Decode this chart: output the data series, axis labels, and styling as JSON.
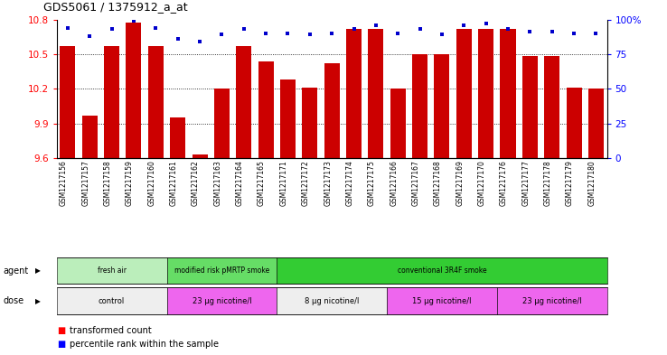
{
  "title": "GDS5061 / 1375912_a_at",
  "samples": [
    "GSM1217156",
    "GSM1217157",
    "GSM1217158",
    "GSM1217159",
    "GSM1217160",
    "GSM1217161",
    "GSM1217162",
    "GSM1217163",
    "GSM1217164",
    "GSM1217165",
    "GSM1217171",
    "GSM1217172",
    "GSM1217173",
    "GSM1217174",
    "GSM1217175",
    "GSM1217166",
    "GSM1217167",
    "GSM1217168",
    "GSM1217169",
    "GSM1217170",
    "GSM1217176",
    "GSM1217177",
    "GSM1217178",
    "GSM1217179",
    "GSM1217180"
  ],
  "bar_values": [
    10.57,
    9.97,
    10.57,
    10.77,
    10.57,
    9.95,
    9.63,
    10.2,
    10.57,
    10.44,
    10.28,
    10.21,
    10.42,
    10.72,
    10.72,
    10.2,
    10.5,
    10.5,
    10.72,
    10.72,
    10.72,
    10.48,
    10.48,
    10.21,
    10.2
  ],
  "percentile_values": [
    94,
    88,
    93,
    99,
    94,
    86,
    84,
    89,
    93,
    90,
    90,
    89,
    90,
    93,
    96,
    90,
    93,
    89,
    96,
    97,
    93,
    91,
    91,
    90,
    90
  ],
  "ylim": [
    9.6,
    10.8
  ],
  "yticks": [
    9.6,
    9.9,
    10.2,
    10.5,
    10.8
  ],
  "right_ylim": [
    0,
    100
  ],
  "right_yticks": [
    0,
    25,
    50,
    75,
    100
  ],
  "bar_color": "#cc0000",
  "dot_color": "#0000cc",
  "grid_lines": [
    9.9,
    10.2,
    10.5
  ],
  "agent_groups": [
    {
      "label": "fresh air",
      "start": 0,
      "end": 5,
      "color": "#bbeebb"
    },
    {
      "label": "modified risk pMRTP smoke",
      "start": 5,
      "end": 10,
      "color": "#66dd66"
    },
    {
      "label": "conventional 3R4F smoke",
      "start": 10,
      "end": 25,
      "color": "#33cc33"
    }
  ],
  "dose_groups": [
    {
      "label": "control",
      "start": 0,
      "end": 5,
      "color": "#eeeeee"
    },
    {
      "label": "23 μg nicotine/l",
      "start": 5,
      "end": 10,
      "color": "#ee66ee"
    },
    {
      "label": "8 μg nicotine/l",
      "start": 10,
      "end": 15,
      "color": "#eeeeee"
    },
    {
      "label": "15 μg nicotine/l",
      "start": 15,
      "end": 20,
      "color": "#ee66ee"
    },
    {
      "label": "23 μg nicotine/l",
      "start": 20,
      "end": 25,
      "color": "#ee66ee"
    }
  ],
  "legend_bar_label": "transformed count",
  "legend_dot_label": "percentile rank within the sample"
}
